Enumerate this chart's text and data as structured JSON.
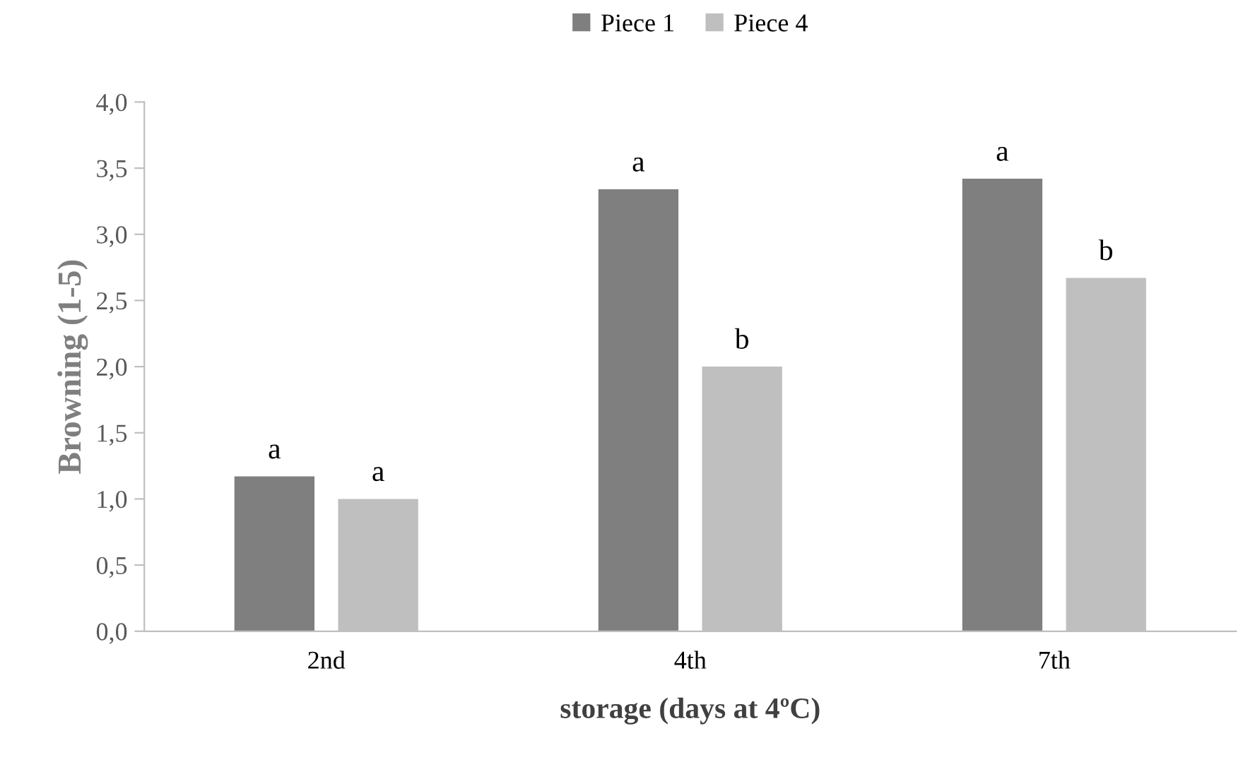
{
  "chart_data": {
    "type": "bar",
    "xlabel": "storage (days at 4ºC)",
    "ylabel": "Browning (1-5)",
    "categories": [
      "2nd",
      "4th",
      "7th"
    ],
    "series": [
      {
        "name": "Piece 1",
        "color": "#7f7f7f",
        "values": [
          1.17,
          3.34,
          3.42
        ]
      },
      {
        "name": "Piece 4",
        "color": "#bfbfbf",
        "values": [
          1.0,
          2.0,
          2.67
        ]
      }
    ],
    "ylim": [
      0,
      4
    ],
    "yticks": [
      {
        "value": 0,
        "label": "0,0"
      },
      {
        "value": 0.5,
        "label": "0,5"
      },
      {
        "value": 1,
        "label": "1,0"
      },
      {
        "value": 1.5,
        "label": "1,5"
      },
      {
        "value": 2,
        "label": "2,0"
      },
      {
        "value": 2.5,
        "label": "2,5"
      },
      {
        "value": 3,
        "label": "3,0"
      },
      {
        "value": 3.5,
        "label": "3,5"
      },
      {
        "value": 4,
        "label": "4,0"
      }
    ],
    "grid": false,
    "legend": "top",
    "annotations": [
      "a",
      "a",
      "a",
      "b",
      "a",
      "b"
    ]
  }
}
